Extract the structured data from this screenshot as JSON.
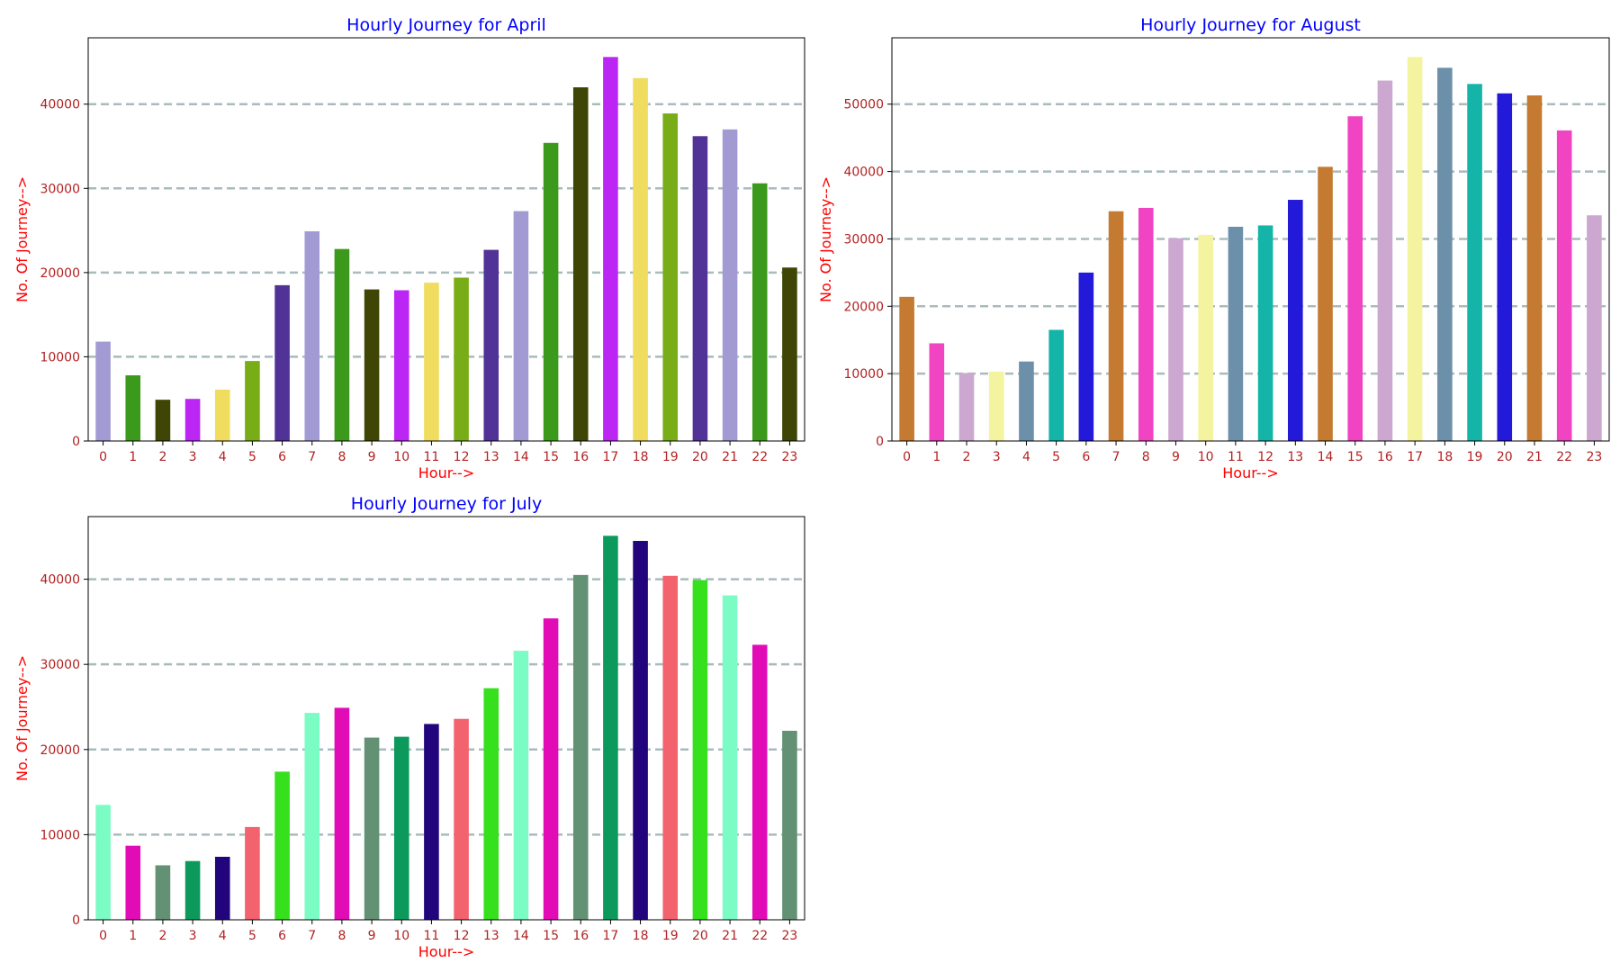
{
  "figure": {
    "background": "#ffffff",
    "title_color": "#0000ff",
    "label_color": "#ff0000",
    "tick_color": "#b22222",
    "grid_color": "#a9bbbd"
  },
  "chart_data": [
    {
      "type": "bar",
      "title": "Hourly Journey for April",
      "xlabel": "Hour-->",
      "ylabel": "No. Of Journey-->",
      "categories": [
        "0",
        "1",
        "2",
        "3",
        "4",
        "5",
        "6",
        "7",
        "8",
        "9",
        "10",
        "11",
        "12",
        "13",
        "14",
        "15",
        "16",
        "17",
        "18",
        "19",
        "20",
        "21",
        "22",
        "23"
      ],
      "values": [
        11800,
        7800,
        4900,
        5000,
        6100,
        9500,
        18500,
        24900,
        22800,
        18000,
        17900,
        18800,
        19400,
        22700,
        27300,
        35400,
        42000,
        45600,
        43100,
        38900,
        36200,
        37000,
        30600,
        20600
      ],
      "colors": [
        "#a29bd3",
        "#3b9a1c",
        "#3f4505",
        "#bb26f5",
        "#f0dc5e",
        "#78ad18",
        "#513297",
        "#a29bd3",
        "#3b9a1c",
        "#3f4505",
        "#bb26f5",
        "#f0dc5e",
        "#78ad18",
        "#513297",
        "#a29bd3",
        "#3b9a1c",
        "#3f4505",
        "#bb26f5",
        "#f0dc5e",
        "#78ad18",
        "#513297",
        "#a29bd3",
        "#3b9a1c",
        "#3f4505"
      ],
      "yticks": [
        0,
        10000,
        20000,
        30000,
        40000
      ],
      "ylim": [
        0,
        47880
      ],
      "grid": "y dashed"
    },
    {
      "type": "bar",
      "title": "Hourly Journey for August",
      "xlabel": "Hour-->",
      "ylabel": "No. Of Journey-->",
      "categories": [
        "0",
        "1",
        "2",
        "3",
        "4",
        "5",
        "6",
        "7",
        "8",
        "9",
        "10",
        "11",
        "12",
        "13",
        "14",
        "15",
        "16",
        "17",
        "18",
        "19",
        "20",
        "21",
        "22",
        "23"
      ],
      "values": [
        21400,
        14500,
        10100,
        10300,
        11800,
        16500,
        25000,
        34100,
        34600,
        30100,
        30600,
        31800,
        32000,
        35800,
        40700,
        48200,
        53500,
        57000,
        55400,
        53000,
        51600,
        51300,
        46100,
        33500
      ],
      "colors": [
        "#c47a30",
        "#f044c3",
        "#cca8d0",
        "#f3f3a0",
        "#6c8faa",
        "#14b5a8",
        "#2219d9",
        "#c47a30",
        "#f044c3",
        "#cca8d0",
        "#f3f3a0",
        "#6c8faa",
        "#14b5a8",
        "#2219d9",
        "#c47a30",
        "#f044c3",
        "#cca8d0",
        "#f3f3a0",
        "#6c8faa",
        "#14b5a8",
        "#2219d9",
        "#c47a30",
        "#f044c3",
        "#cca8d0"
      ],
      "yticks": [
        0,
        10000,
        20000,
        30000,
        40000,
        50000
      ],
      "ylim": [
        0,
        59850
      ],
      "grid": "y dashed"
    },
    {
      "type": "bar",
      "title": "Hourly Journey for July",
      "xlabel": "Hour-->",
      "ylabel": "No. Of Journey-->",
      "categories": [
        "0",
        "1",
        "2",
        "3",
        "4",
        "5",
        "6",
        "7",
        "8",
        "9",
        "10",
        "11",
        "12",
        "13",
        "14",
        "15",
        "16",
        "17",
        "18",
        "19",
        "20",
        "21",
        "22",
        "23"
      ],
      "values": [
        13500,
        8700,
        6400,
        6900,
        7400,
        10900,
        17400,
        24300,
        24900,
        21400,
        21500,
        23000,
        23600,
        27200,
        31600,
        35400,
        40500,
        45100,
        44500,
        40400,
        39900,
        38100,
        32300,
        22200
      ],
      "colors": [
        "#7cfcc5",
        "#e20cb6",
        "#629273",
        "#0c9a5c",
        "#22057c",
        "#f2636e",
        "#36e01d",
        "#7cfcc5",
        "#e20cb6",
        "#629273",
        "#0c9a5c",
        "#22057c",
        "#f2636e",
        "#36e01d",
        "#7cfcc5",
        "#e20cb6",
        "#629273",
        "#0c9a5c",
        "#22057c",
        "#f2636e",
        "#36e01d",
        "#7cfcc5",
        "#e20cb6",
        "#629273"
      ],
      "yticks": [
        0,
        10000,
        20000,
        30000,
        40000
      ],
      "ylim": [
        0,
        47355
      ],
      "grid": "y dashed"
    }
  ]
}
